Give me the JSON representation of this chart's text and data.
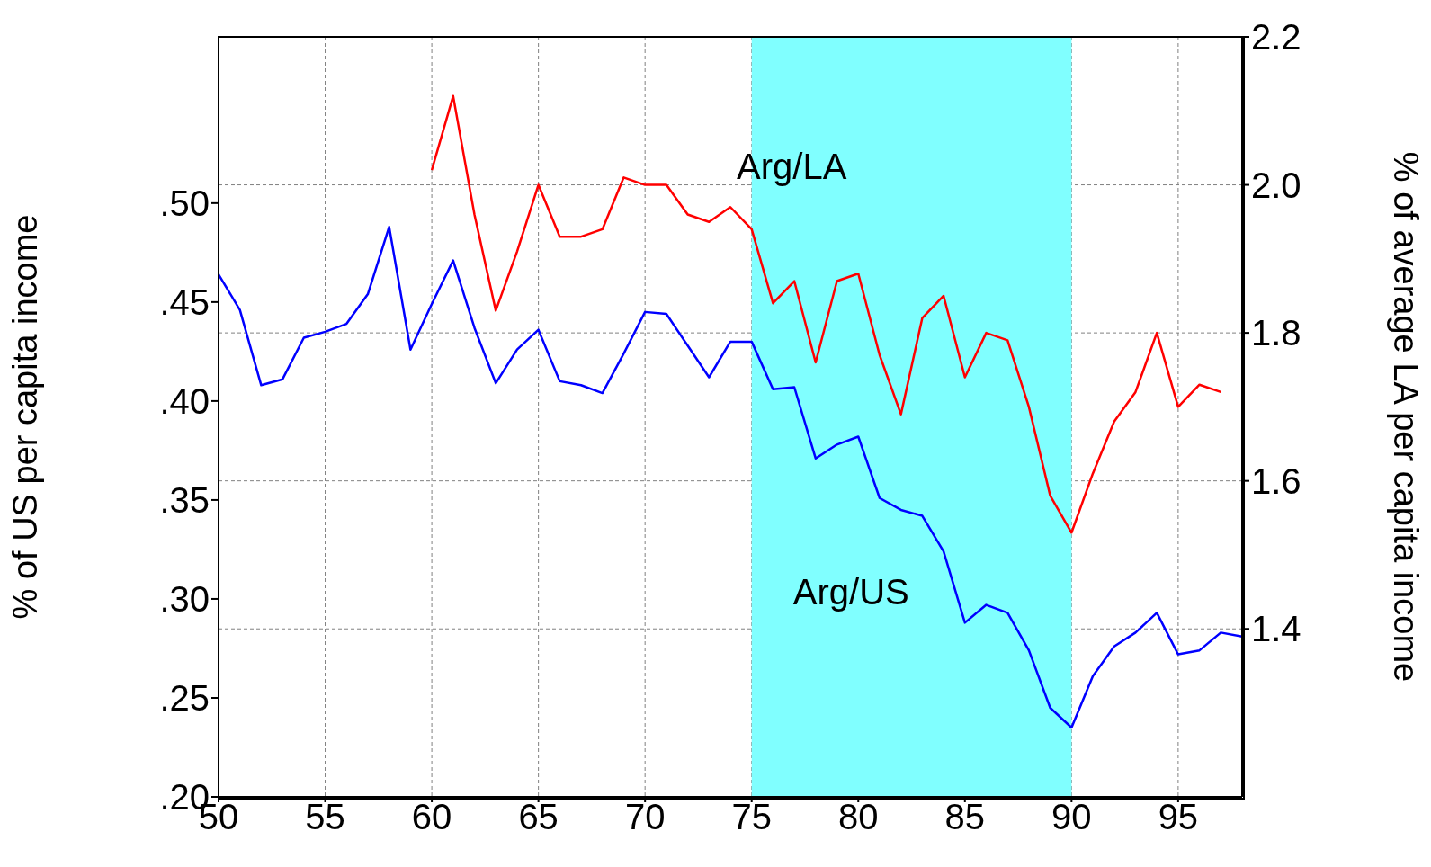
{
  "chart_data": {
    "type": "line",
    "ylabel": "% of US per capita income",
    "y2label": "% of average LA per capita income",
    "x": [
      50,
      51,
      52,
      53,
      54,
      55,
      56,
      57,
      58,
      59,
      60,
      61,
      62,
      63,
      64,
      65,
      66,
      67,
      68,
      69,
      70,
      71,
      72,
      73,
      74,
      75,
      76,
      77,
      78,
      79,
      80,
      81,
      82,
      83,
      84,
      85,
      86,
      87,
      88,
      89,
      90,
      91,
      92,
      93,
      94,
      95,
      96,
      97,
      98
    ],
    "series": [
      {
        "color": "#0000ff",
        "values": [
          0.464,
          0.446,
          0.408,
          0.411,
          0.432,
          0.435,
          0.439,
          0.454,
          0.488,
          0.426,
          0.449,
          0.471,
          0.437,
          0.409,
          0.426,
          0.436,
          0.41,
          0.408,
          0.404,
          0.424,
          0.445,
          0.444,
          0.428,
          0.412,
          0.43,
          0.43,
          0.406,
          0.407,
          0.371,
          0.378,
          0.382,
          0.351,
          0.345,
          0.342,
          0.324,
          0.288,
          0.297,
          0.293,
          0.274,
          0.245,
          0.235,
          0.261,
          0.276,
          0.283,
          0.293,
          0.272,
          0.274,
          0.283,
          0.281
        ]
      },
      {
        "color": "#ff0000",
        "axis": "y2",
        "x": [
          60,
          61,
          62,
          63,
          64,
          65,
          66,
          67,
          68,
          69,
          70,
          71,
          72,
          73,
          74,
          75,
          76,
          77,
          78,
          79,
          80,
          81,
          82,
          83,
          84,
          85,
          86,
          87,
          88,
          89,
          90,
          91,
          92,
          93,
          94,
          95,
          96,
          97
        ],
        "values": [
          2.02,
          2.12,
          1.96,
          1.83,
          1.91,
          2.0,
          1.93,
          1.93,
          1.94,
          2.01,
          2.0,
          2.0,
          1.96,
          1.95,
          1.97,
          1.94,
          1.84,
          1.87,
          1.76,
          1.87,
          1.88,
          1.77,
          1.69,
          1.82,
          1.85,
          1.74,
          1.8,
          1.79,
          1.7,
          1.58,
          1.53,
          1.61,
          1.68,
          1.72,
          1.8,
          1.7,
          1.73,
          1.72
        ]
      }
    ],
    "xlim": [
      50,
      98
    ],
    "xticks": [
      50,
      55,
      60,
      65,
      70,
      75,
      80,
      85,
      90,
      95
    ],
    "ylim": [
      0.2,
      0.584
    ],
    "yticks": [
      {
        "value": 0.2,
        "label": ".20"
      },
      {
        "value": 0.25,
        "label": ".25"
      },
      {
        "value": 0.3,
        "label": ".30"
      },
      {
        "value": 0.35,
        "label": ".35"
      },
      {
        "value": 0.4,
        "label": ".40"
      },
      {
        "value": 0.45,
        "label": ".45"
      },
      {
        "value": 0.5,
        "label": ".50"
      }
    ],
    "y2lim": [
      1.173,
      2.2
    ],
    "y2ticks": [
      {
        "value": 1.4,
        "label": "1.4"
      },
      {
        "value": 1.6,
        "label": "1.6"
      },
      {
        "value": 1.8,
        "label": "1.8"
      },
      {
        "value": 2,
        "label": "2.0"
      },
      {
        "value": 2.2,
        "label": "2.2"
      }
    ],
    "bands": [
      {
        "axis": "x",
        "from": 75,
        "to": 90,
        "color": "#80ffff"
      }
    ],
    "annotations": [
      "Arg/LA",
      "Arg/US"
    ],
    "grid": true,
    "marker": "none",
    "line_style": "solid"
  }
}
